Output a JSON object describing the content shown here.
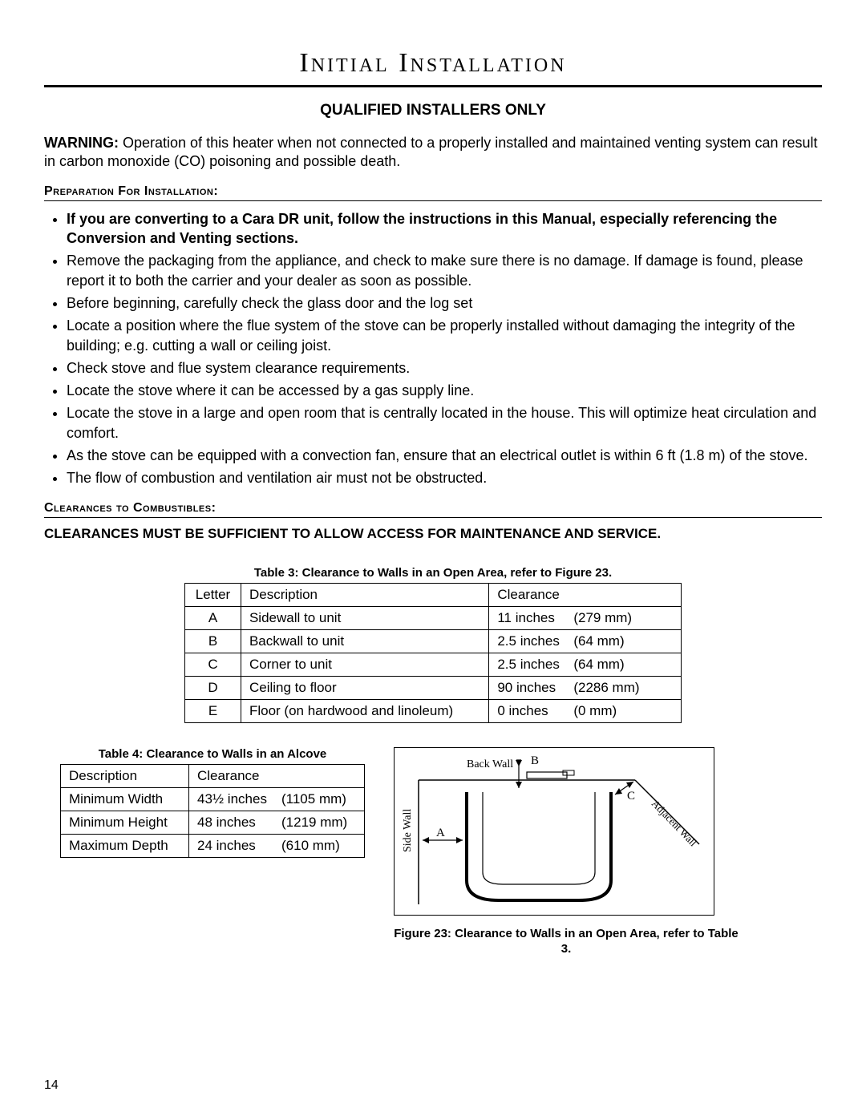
{
  "page_number": "14",
  "title": "Initial Installation",
  "subtitle": "QUALIFIED INSTALLERS ONLY",
  "warning_label": "WARNING:",
  "warning_text": " Operation of this heater when not connected to a properly installed and maintained venting system can result in carbon monoxide (CO) poisoning and possible death.",
  "prep_heading": "Preparation For Installation:",
  "bullets": [
    {
      "text": "If you are converting to a Cara DR unit, follow the instructions in this Manual, especially referencing the Conversion and Venting sections.",
      "bold": true
    },
    {
      "text": "Remove the packaging from the appliance, and check to make sure there is no damage.  If damage is found, please report it to both the carrier and your dealer as soon as possible.",
      "bold": false
    },
    {
      "text": "Before beginning, carefully check the glass door and the log set",
      "bold": false
    },
    {
      "text": "Locate a position where the flue system of the stove can be properly installed without damaging the integrity of the building; e.g. cutting a wall or ceiling joist.",
      "bold": false
    },
    {
      "text": "Check stove and flue system clearance requirements.",
      "bold": false
    },
    {
      "text": "Locate the stove where it can be accessed by a gas supply line.",
      "bold": false
    },
    {
      "text": "Locate the stove in a large and open room that is centrally located in the house.  This will optimize heat circulation and comfort.",
      "bold": false
    },
    {
      "text": "As the stove can be equipped with a convection fan, ensure that an electrical outlet is within 6 ft (1.8 m) of the stove.",
      "bold": false
    },
    {
      "text": "The flow of combustion and ventilation air must not be obstructed.",
      "bold": false
    }
  ],
  "clear_heading": "Clearances to Combustibles:",
  "clearances_line": "CLEARANCES MUST BE SUFFICIENT TO ALLOW ACCESS FOR MAINTENANCE AND SERVICE.",
  "table3": {
    "caption": "Table 3: Clearance to Walls in an Open Area, refer to Figure 23.",
    "headers": [
      "Letter",
      "Description",
      "Clearance"
    ],
    "rows": [
      {
        "letter": "A",
        "desc": "Sidewall to unit",
        "inches": "11 inches",
        "mm": "(279 mm)"
      },
      {
        "letter": "B",
        "desc": "Backwall to unit",
        "inches": "2.5 inches",
        "mm": "(64 mm)"
      },
      {
        "letter": "C",
        "desc": "Corner to unit",
        "inches": "2.5 inches",
        "mm": "(64 mm)"
      },
      {
        "letter": "D",
        "desc": "Ceiling to floor",
        "inches": "90 inches",
        "mm": "(2286 mm)"
      },
      {
        "letter": "E",
        "desc": "Floor (on hardwood and linoleum)",
        "inches": "0 inches",
        "mm": "(0 mm)"
      }
    ]
  },
  "table4": {
    "caption": "Table 4: Clearance to Walls in an Alcove",
    "headers": [
      "Description",
      "Clearance"
    ],
    "rows": [
      {
        "desc": "Minimum Width",
        "inches": "43½ inches",
        "mm": "(1105 mm)"
      },
      {
        "desc": "Minimum Height",
        "inches": "48 inches",
        "mm": "(1219 mm)"
      },
      {
        "desc": "Maximum Depth",
        "inches": "24 inches",
        "mm": "(610 mm)"
      }
    ]
  },
  "figure": {
    "caption": "Figure 23: Clearance to Walls in an Open Area, refer to Table 3.",
    "labels": {
      "back_wall": "Back Wall",
      "side_wall": "Side Wall",
      "adjacent_wall": "Adjacent Wall",
      "A": "A",
      "B": "B",
      "C": "C"
    },
    "colors": {
      "stroke": "#000000",
      "fill": "#ffffff"
    },
    "stroke_width": 1.5
  }
}
